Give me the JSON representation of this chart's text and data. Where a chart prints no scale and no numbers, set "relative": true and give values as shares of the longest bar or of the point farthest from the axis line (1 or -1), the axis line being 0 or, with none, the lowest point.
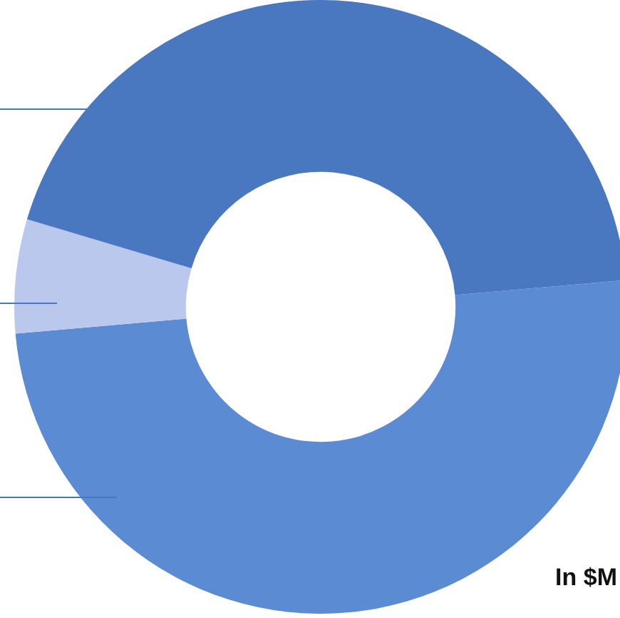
{
  "chart_data": {
    "type": "donut",
    "relative": true,
    "categories": [
      null,
      null,
      null
    ],
    "values": [
      50,
      6,
      44
    ],
    "colors": [
      "#5b8bd2",
      "#b9c8ec",
      "#4a78c0"
    ],
    "annotations": [
      "In $M"
    ],
    "legend": false
  }
}
